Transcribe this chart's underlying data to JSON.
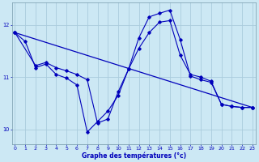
{
  "title": "Graphe des températures (°c)",
  "bg_color": "#cce8f4",
  "grid_color": "#aaccdd",
  "line_color": "#0000bb",
  "xlim": [
    -0.3,
    23.3
  ],
  "ylim": [
    9.72,
    12.42
  ],
  "yticks": [
    10,
    11,
    12
  ],
  "xticks": [
    0,
    1,
    2,
    3,
    4,
    5,
    6,
    7,
    8,
    9,
    10,
    11,
    12,
    13,
    14,
    15,
    16,
    17,
    18,
    19,
    20,
    21,
    22,
    23
  ],
  "series1_x": [
    0,
    1,
    2,
    3,
    4,
    5,
    6,
    7,
    8,
    9,
    10,
    11,
    12,
    13,
    14,
    15,
    16,
    17,
    18,
    19,
    20,
    21,
    22,
    23
  ],
  "series1_y": [
    11.85,
    11.68,
    11.18,
    11.25,
    11.05,
    10.98,
    10.85,
    9.95,
    10.15,
    10.35,
    10.65,
    11.15,
    11.75,
    12.15,
    12.22,
    12.28,
    11.72,
    11.02,
    10.95,
    10.9,
    10.48,
    10.44,
    10.42,
    10.42
  ],
  "series2_x": [
    0,
    2,
    3,
    4,
    5,
    6,
    7,
    8,
    9,
    10,
    11,
    12,
    13,
    14,
    15,
    16,
    17,
    18,
    19,
    20,
    21,
    22,
    23
  ],
  "series2_y": [
    11.85,
    11.22,
    11.28,
    11.18,
    11.12,
    11.05,
    10.95,
    10.12,
    10.2,
    10.72,
    11.15,
    11.55,
    11.85,
    12.05,
    12.08,
    11.42,
    11.05,
    11.0,
    10.92,
    10.48,
    10.44,
    10.42,
    10.42
  ],
  "series3_x": [
    0,
    23
  ],
  "series3_y": [
    11.85,
    10.42
  ]
}
